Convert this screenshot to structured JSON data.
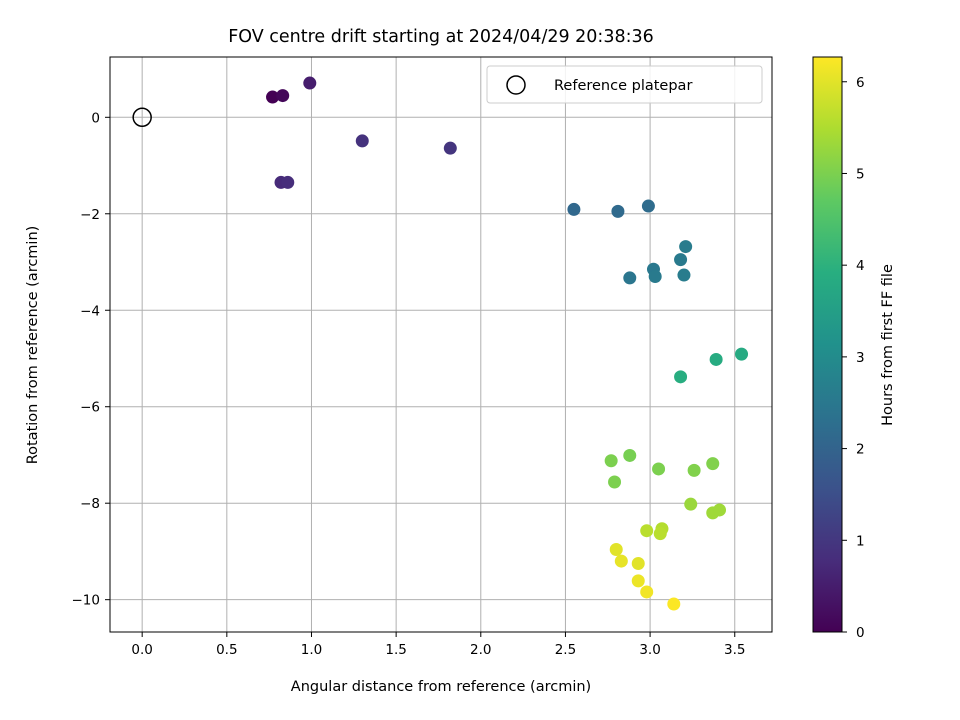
{
  "chart_data": {
    "type": "scatter",
    "title": "FOV centre drift starting at 2024/04/29 20:38:36",
    "xlabel": "Angular distance from reference (arcmin)",
    "ylabel": "Rotation from reference (arcmin)",
    "xlim": [
      -0.19,
      3.72
    ],
    "ylim": [
      -10.67,
      1.25
    ],
    "xticks": [
      0.0,
      0.5,
      1.0,
      1.5,
      2.0,
      2.5,
      3.0,
      3.5
    ],
    "xtick_labels": [
      "0.0",
      "0.5",
      "1.0",
      "1.5",
      "2.0",
      "2.5",
      "3.0",
      "3.5"
    ],
    "yticks": [
      0,
      -2,
      -4,
      -6,
      -8,
      -10
    ],
    "ytick_labels": [
      "0",
      "−2",
      "−4",
      "−6",
      "−8",
      "−10"
    ],
    "grid": true,
    "legend": {
      "position": "top-right",
      "entries": [
        "Reference platepar"
      ]
    },
    "reference_point": {
      "x": 0.0,
      "y": 0.0,
      "label": "Reference platepar"
    },
    "colorbar": {
      "label": "Hours from first FF file",
      "colormap": "viridis",
      "range": [
        0,
        6.27
      ],
      "ticks": [
        0,
        1,
        2,
        3,
        4,
        5,
        6
      ],
      "tick_labels": [
        "0",
        "1",
        "2",
        "3",
        "4",
        "5",
        "6"
      ]
    },
    "series": [
      {
        "name": "FOV centre drift",
        "points": [
          {
            "x": 0.77,
            "y": 0.42,
            "hours": 0.0
          },
          {
            "x": 0.83,
            "y": 0.45,
            "hours": 0.1
          },
          {
            "x": 0.99,
            "y": 0.71,
            "hours": 0.5
          },
          {
            "x": 0.82,
            "y": -1.35,
            "hours": 0.75
          },
          {
            "x": 0.86,
            "y": -1.35,
            "hours": 0.8
          },
          {
            "x": 1.3,
            "y": -0.49,
            "hours": 0.9
          },
          {
            "x": 1.82,
            "y": -0.64,
            "hours": 0.95
          },
          {
            "x": 2.55,
            "y": -1.91,
            "hours": 2.1
          },
          {
            "x": 2.81,
            "y": -1.95,
            "hours": 2.15
          },
          {
            "x": 2.99,
            "y": -1.84,
            "hours": 2.2
          },
          {
            "x": 3.21,
            "y": -2.68,
            "hours": 2.6
          },
          {
            "x": 3.18,
            "y": -2.95,
            "hours": 2.55
          },
          {
            "x": 3.02,
            "y": -3.15,
            "hours": 2.5
          },
          {
            "x": 3.03,
            "y": -3.3,
            "hours": 2.55
          },
          {
            "x": 2.88,
            "y": -3.33,
            "hours": 2.45
          },
          {
            "x": 3.2,
            "y": -3.27,
            "hours": 2.6
          },
          {
            "x": 3.54,
            "y": -4.91,
            "hours": 3.8
          },
          {
            "x": 3.39,
            "y": -5.02,
            "hours": 3.85
          },
          {
            "x": 3.18,
            "y": -5.38,
            "hours": 3.9
          },
          {
            "x": 2.77,
            "y": -7.12,
            "hours": 5.0
          },
          {
            "x": 2.88,
            "y": -7.01,
            "hours": 4.95
          },
          {
            "x": 3.05,
            "y": -7.29,
            "hours": 5.0
          },
          {
            "x": 3.26,
            "y": -7.32,
            "hours": 5.05
          },
          {
            "x": 3.37,
            "y": -7.18,
            "hours": 5.05
          },
          {
            "x": 2.79,
            "y": -7.56,
            "hours": 5.0
          },
          {
            "x": 3.24,
            "y": -8.02,
            "hours": 5.3
          },
          {
            "x": 3.37,
            "y": -8.2,
            "hours": 5.35
          },
          {
            "x": 3.41,
            "y": -8.14,
            "hours": 5.35
          },
          {
            "x": 3.07,
            "y": -8.53,
            "hours": 5.55
          },
          {
            "x": 2.98,
            "y": -8.57,
            "hours": 5.6
          },
          {
            "x": 3.06,
            "y": -8.63,
            "hours": 5.6
          },
          {
            "x": 2.8,
            "y": -8.96,
            "hours": 6.0
          },
          {
            "x": 2.83,
            "y": -9.2,
            "hours": 6.05
          },
          {
            "x": 2.93,
            "y": -9.25,
            "hours": 6.0
          },
          {
            "x": 2.93,
            "y": -9.61,
            "hours": 6.1
          },
          {
            "x": 2.98,
            "y": -9.84,
            "hours": 6.15
          },
          {
            "x": 3.14,
            "y": -10.09,
            "hours": 6.25
          }
        ]
      }
    ]
  }
}
